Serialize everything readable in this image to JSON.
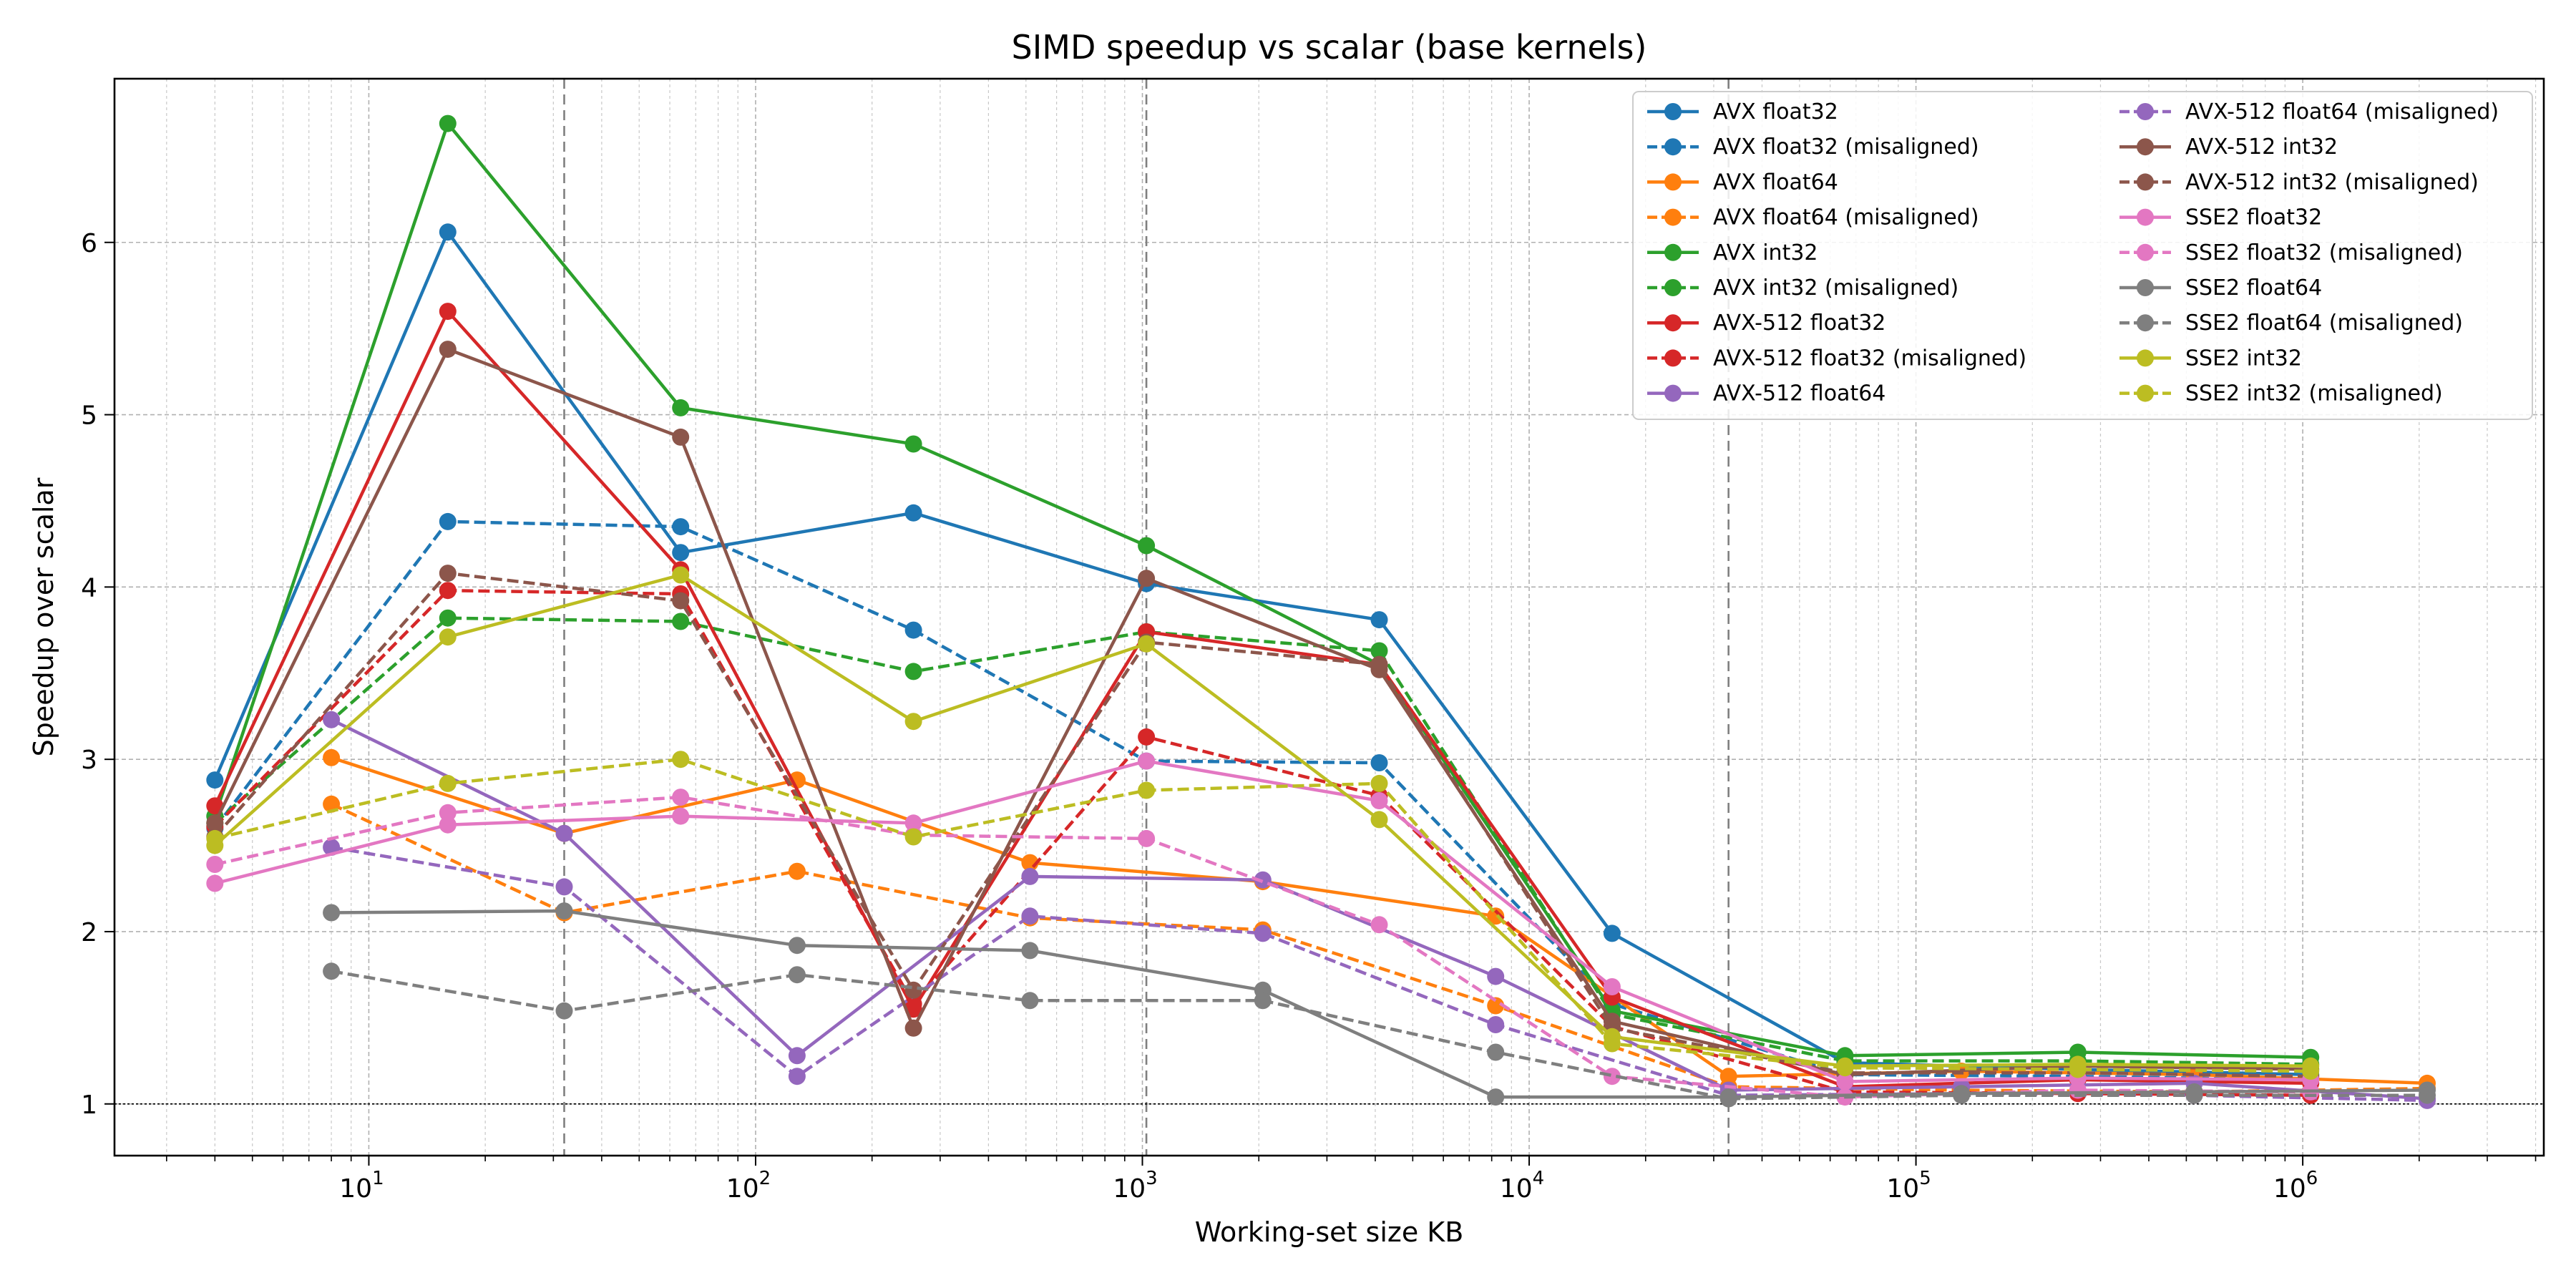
{
  "chart_data": {
    "type": "line",
    "title": "SIMD speedup vs scalar (base kernels)",
    "xlabel": "Working-set size KB",
    "ylabel": "Speedup over scalar",
    "x_scale": "log",
    "xlim": [
      2.2,
      4200000
    ],
    "ylim": [
      0.7,
      6.95
    ],
    "x_ticks": [
      10,
      100,
      1000,
      10000,
      100000,
      1000000
    ],
    "x_tick_labels": [
      [
        "10",
        "1"
      ],
      [
        "10",
        "2"
      ],
      [
        "10",
        "3"
      ],
      [
        "10",
        "4"
      ],
      [
        "10",
        "5"
      ],
      [
        "10",
        "6"
      ]
    ],
    "y_ticks": [
      1,
      2,
      3,
      4,
      5,
      6
    ],
    "y_tick_labels": [
      "1",
      "2",
      "3",
      "4",
      "5",
      "6"
    ],
    "grid": true,
    "reference_lines": {
      "vertical": [
        32,
        1024,
        32768
      ],
      "horizontal": [
        1
      ]
    },
    "legend_position": "upper-right",
    "legend_columns": 2,
    "series": [
      {
        "name": "AVX float32",
        "color": "#1f77b4",
        "dash": "solid",
        "points": [
          [
            4,
            2.88
          ],
          [
            16,
            6.06
          ],
          [
            64,
            4.2
          ],
          [
            256,
            4.43
          ],
          [
            1024,
            4.02
          ],
          [
            4096,
            3.81
          ],
          [
            16384,
            1.99
          ],
          [
            65536,
            1.24
          ],
          [
            262144,
            1.2
          ],
          [
            1048576,
            1.17
          ]
        ]
      },
      {
        "name": "AVX float32 (misaligned)",
        "color": "#1f77b4",
        "dash": "dashed",
        "points": [
          [
            4,
            2.6
          ],
          [
            16,
            4.38
          ],
          [
            64,
            4.35
          ],
          [
            256,
            3.75
          ],
          [
            1024,
            2.99
          ],
          [
            4096,
            2.98
          ],
          [
            16384,
            1.58
          ],
          [
            65536,
            1.17
          ],
          [
            262144,
            1.16
          ],
          [
            1048576,
            1.14
          ]
        ]
      },
      {
        "name": "AVX float64",
        "color": "#ff7f0e",
        "dash": "solid",
        "points": [
          [
            8,
            3.01
          ],
          [
            32,
            2.57
          ],
          [
            128,
            2.88
          ],
          [
            512,
            2.4
          ],
          [
            2048,
            2.29
          ],
          [
            8192,
            2.09
          ],
          [
            32768,
            1.16
          ],
          [
            131072,
            1.19
          ],
          [
            524288,
            1.17
          ],
          [
            2097152,
            1.12
          ]
        ]
      },
      {
        "name": "AVX float64 (misaligned)",
        "color": "#ff7f0e",
        "dash": "dashed",
        "points": [
          [
            8,
            2.74
          ],
          [
            32,
            2.11
          ],
          [
            128,
            2.35
          ],
          [
            512,
            2.08
          ],
          [
            2048,
            2.01
          ],
          [
            8192,
            1.57
          ],
          [
            32768,
            1.1
          ],
          [
            131072,
            1.08
          ],
          [
            524288,
            1.07
          ],
          [
            2097152,
            1.09
          ]
        ]
      },
      {
        "name": "AVX int32",
        "color": "#2ca02c",
        "dash": "solid",
        "points": [
          [
            4,
            2.67
          ],
          [
            16,
            6.69
          ],
          [
            64,
            5.04
          ],
          [
            256,
            4.83
          ],
          [
            1024,
            4.24
          ],
          [
            4096,
            3.55
          ],
          [
            16384,
            1.54
          ],
          [
            65536,
            1.28
          ],
          [
            262144,
            1.3
          ],
          [
            1048576,
            1.27
          ]
        ]
      },
      {
        "name": "AVX int32 (misaligned)",
        "color": "#2ca02c",
        "dash": "dashed",
        "points": [
          [
            4,
            2.63
          ],
          [
            16,
            3.82
          ],
          [
            64,
            3.8
          ],
          [
            256,
            3.51
          ],
          [
            1024,
            3.74
          ],
          [
            4096,
            3.63
          ],
          [
            16384,
            1.52
          ],
          [
            65536,
            1.25
          ],
          [
            262144,
            1.25
          ],
          [
            1048576,
            1.23
          ]
        ]
      },
      {
        "name": "AVX-512 float32",
        "color": "#d62728",
        "dash": "solid",
        "points": [
          [
            4,
            2.73
          ],
          [
            16,
            5.6
          ],
          [
            64,
            4.1
          ],
          [
            256,
            1.55
          ],
          [
            1024,
            3.74
          ],
          [
            4096,
            3.55
          ],
          [
            16384,
            1.62
          ],
          [
            65536,
            1.1
          ],
          [
            262144,
            1.14
          ],
          [
            1048576,
            1.12
          ]
        ]
      },
      {
        "name": "AVX-512 float32 (misaligned)",
        "color": "#d62728",
        "dash": "dashed",
        "points": [
          [
            4,
            2.61
          ],
          [
            16,
            3.98
          ],
          [
            64,
            3.96
          ],
          [
            256,
            1.58
          ],
          [
            1024,
            3.13
          ],
          [
            4096,
            2.79
          ],
          [
            16384,
            1.45
          ],
          [
            65536,
            1.07
          ],
          [
            262144,
            1.06
          ],
          [
            1048576,
            1.05
          ]
        ]
      },
      {
        "name": "AVX-512 float64",
        "color": "#9467bd",
        "dash": "solid",
        "points": [
          [
            8,
            3.23
          ],
          [
            32,
            2.57
          ],
          [
            128,
            1.28
          ],
          [
            512,
            2.32
          ],
          [
            2048,
            2.3
          ],
          [
            8192,
            1.74
          ],
          [
            32768,
            1.08
          ],
          [
            131072,
            1.1
          ],
          [
            524288,
            1.12
          ],
          [
            2097152,
            1.03
          ]
        ]
      },
      {
        "name": "AVX-512 float64 (misaligned)",
        "color": "#9467bd",
        "dash": "dashed",
        "points": [
          [
            8,
            2.49
          ],
          [
            32,
            2.26
          ],
          [
            128,
            1.16
          ],
          [
            512,
            2.09
          ],
          [
            2048,
            1.99
          ],
          [
            8192,
            1.46
          ],
          [
            32768,
            1.05
          ],
          [
            131072,
            1.06
          ],
          [
            524288,
            1.05
          ],
          [
            2097152,
            1.02
          ]
        ]
      },
      {
        "name": "AVX-512 int32",
        "color": "#8c564b",
        "dash": "solid",
        "points": [
          [
            4,
            2.63
          ],
          [
            16,
            5.38
          ],
          [
            64,
            4.87
          ],
          [
            256,
            1.44
          ],
          [
            1024,
            4.05
          ],
          [
            4096,
            3.52
          ],
          [
            16384,
            1.48
          ],
          [
            65536,
            1.17
          ],
          [
            262144,
            1.22
          ],
          [
            1048576,
            1.2
          ]
        ]
      },
      {
        "name": "AVX-512 int32 (misaligned)",
        "color": "#8c564b",
        "dash": "dashed",
        "points": [
          [
            4,
            2.55
          ],
          [
            16,
            4.08
          ],
          [
            64,
            3.92
          ],
          [
            256,
            1.66
          ],
          [
            1024,
            3.68
          ],
          [
            4096,
            3.55
          ],
          [
            16384,
            1.44
          ],
          [
            65536,
            1.18
          ],
          [
            262144,
            1.18
          ],
          [
            1048576,
            1.16
          ]
        ]
      },
      {
        "name": "SSE2 float32",
        "color": "#e377c2",
        "dash": "solid",
        "points": [
          [
            4,
            2.28
          ],
          [
            16,
            2.62
          ],
          [
            64,
            2.67
          ],
          [
            256,
            2.63
          ],
          [
            1024,
            2.99
          ],
          [
            4096,
            2.76
          ],
          [
            16384,
            1.68
          ],
          [
            65536,
            1.13
          ],
          [
            262144,
            1.15
          ],
          [
            1048576,
            1.14
          ]
        ]
      },
      {
        "name": "SSE2 float32 (misaligned)",
        "color": "#e377c2",
        "dash": "dashed",
        "points": [
          [
            4,
            2.39
          ],
          [
            16,
            2.69
          ],
          [
            64,
            2.78
          ],
          [
            256,
            2.56
          ],
          [
            1024,
            2.54
          ],
          [
            4096,
            2.04
          ],
          [
            16384,
            1.16
          ],
          [
            65536,
            1.04
          ],
          [
            262144,
            1.08
          ],
          [
            1048576,
            1.07
          ]
        ]
      },
      {
        "name": "SSE2 float64",
        "color": "#7f7f7f",
        "dash": "solid",
        "points": [
          [
            8,
            2.11
          ],
          [
            32,
            2.12
          ],
          [
            128,
            1.92
          ],
          [
            512,
            1.89
          ],
          [
            2048,
            1.66
          ],
          [
            8192,
            1.04
          ],
          [
            32768,
            1.04
          ],
          [
            131072,
            1.06
          ],
          [
            524288,
            1.07
          ],
          [
            2097152,
            1.08
          ]
        ]
      },
      {
        "name": "SSE2 float64 (misaligned)",
        "color": "#7f7f7f",
        "dash": "dashed",
        "points": [
          [
            8,
            1.77
          ],
          [
            32,
            1.54
          ],
          [
            128,
            1.75
          ],
          [
            512,
            1.6
          ],
          [
            2048,
            1.6
          ],
          [
            8192,
            1.3
          ],
          [
            32768,
            1.03
          ],
          [
            131072,
            1.05
          ],
          [
            524288,
            1.05
          ],
          [
            2097152,
            1.05
          ]
        ]
      },
      {
        "name": "SSE2 int32",
        "color": "#bcbd22",
        "dash": "solid",
        "points": [
          [
            4,
            2.5
          ],
          [
            16,
            3.71
          ],
          [
            64,
            4.07
          ],
          [
            256,
            3.22
          ],
          [
            1024,
            3.67
          ],
          [
            4096,
            2.65
          ],
          [
            16384,
            1.39
          ],
          [
            65536,
            1.22
          ],
          [
            262144,
            1.23
          ],
          [
            1048576,
            1.22
          ]
        ]
      },
      {
        "name": "SSE2 int32 (misaligned)",
        "color": "#bcbd22",
        "dash": "dashed",
        "points": [
          [
            4,
            2.54
          ],
          [
            16,
            2.86
          ],
          [
            64,
            3.0
          ],
          [
            256,
            2.55
          ],
          [
            1024,
            2.82
          ],
          [
            4096,
            2.86
          ],
          [
            16384,
            1.35
          ],
          [
            65536,
            1.21
          ],
          [
            262144,
            1.2
          ],
          [
            1048576,
            1.19
          ]
        ]
      }
    ]
  }
}
